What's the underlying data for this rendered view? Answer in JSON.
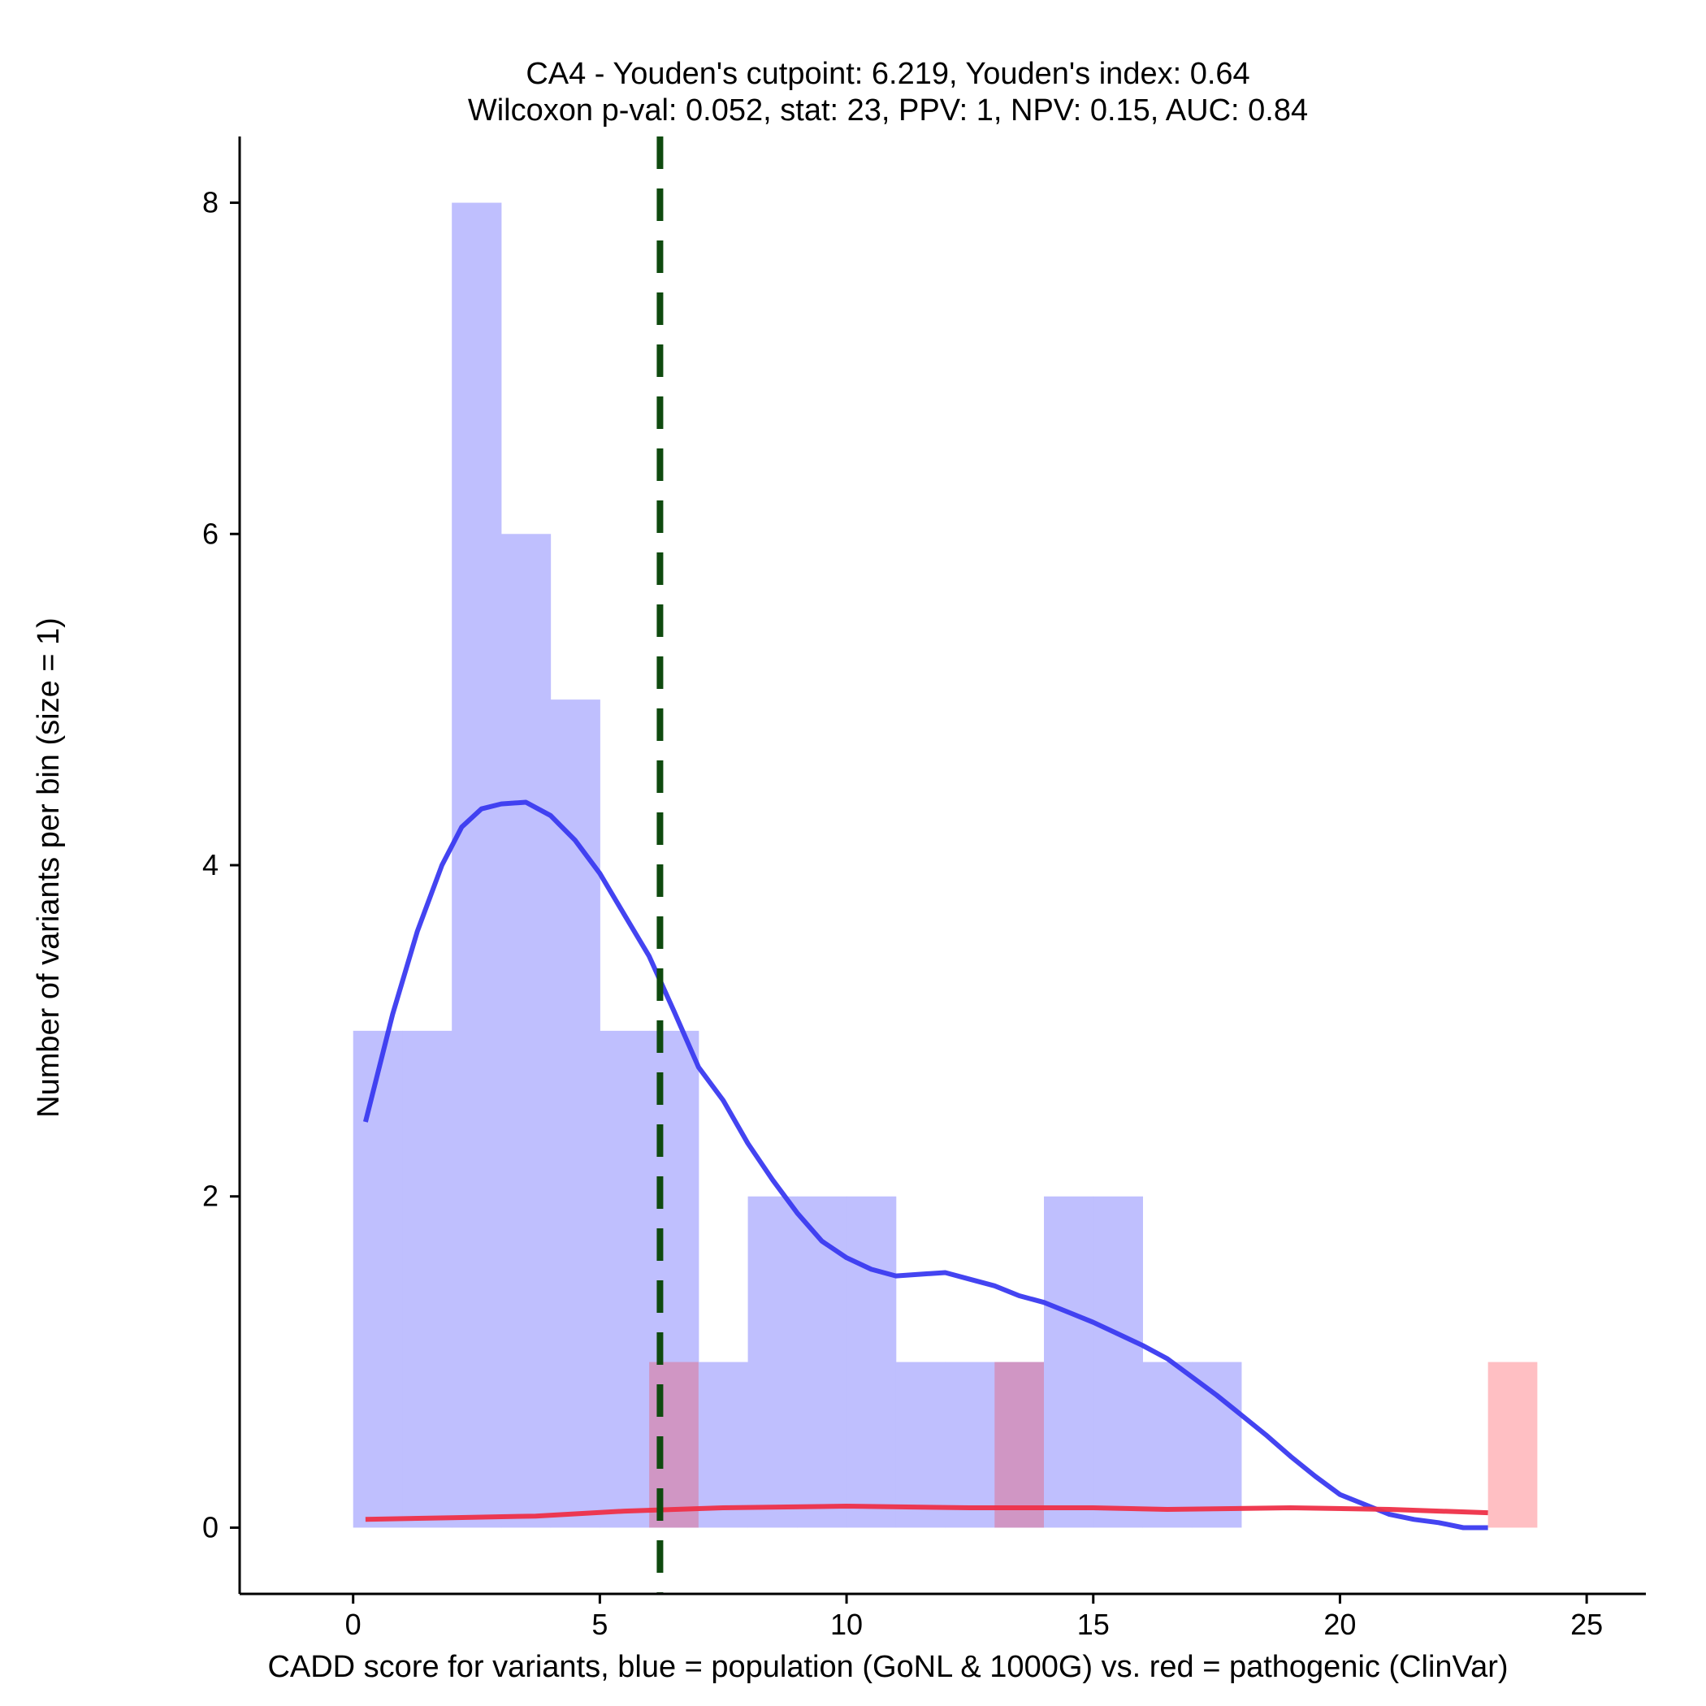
{
  "chart_data": {
    "type": "bar",
    "title": "CA4 - Youden's cutpoint: 6.219, Youden's index: 0.64",
    "subtitle": "Wilcoxon p-val: 0.052, stat: 23, PPV: 1, NPV: 0.15, AUC: 0.84",
    "xlabel": "CADD score for variants, blue = population (GoNL & 1000G) vs. red = pathogenic (ClinVar)",
    "ylabel": "Number of variants per bin (size = 1)",
    "xlim": [
      -2.3,
      26.2
    ],
    "ylim": [
      -0.4,
      8.4
    ],
    "x_ticks": [
      0,
      5,
      10,
      15,
      20,
      25
    ],
    "y_ticks": [
      0,
      2,
      4,
      6,
      8
    ],
    "grid": false,
    "cutpoint": 6.219,
    "colors": {
      "population_hist": "#bfbffe",
      "pathogenic_hist": "#ffbfc3",
      "overlap_hist": "#d096c4",
      "population_density": "#3a3af0",
      "pathogenic_density": "#ee3048",
      "cutpoint_line": "#0f4a0f"
    },
    "series": [
      {
        "name": "population",
        "bin_width": 1,
        "bins": [
          {
            "x": 0,
            "count": 3
          },
          {
            "x": 1,
            "count": 3
          },
          {
            "x": 2,
            "count": 8
          },
          {
            "x": 3,
            "count": 6
          },
          {
            "x": 4,
            "count": 5
          },
          {
            "x": 5,
            "count": 3
          },
          {
            "x": 6,
            "count": 3
          },
          {
            "x": 7,
            "count": 1
          },
          {
            "x": 8,
            "count": 2
          },
          {
            "x": 9,
            "count": 2
          },
          {
            "x": 10,
            "count": 2
          },
          {
            "x": 11,
            "count": 1
          },
          {
            "x": 12,
            "count": 1
          },
          {
            "x": 13,
            "count": 1
          },
          {
            "x": 14,
            "count": 2
          },
          {
            "x": 15,
            "count": 2
          },
          {
            "x": 16,
            "count": 1
          },
          {
            "x": 17,
            "count": 1
          }
        ],
        "density": [
          [
            0.25,
            2.45
          ],
          [
            0.8,
            3.1
          ],
          [
            1.3,
            3.6
          ],
          [
            1.8,
            4.0
          ],
          [
            2.2,
            4.23
          ],
          [
            2.6,
            4.34
          ],
          [
            3.0,
            4.37
          ],
          [
            3.5,
            4.38
          ],
          [
            4.0,
            4.3
          ],
          [
            4.5,
            4.15
          ],
          [
            5.0,
            3.95
          ],
          [
            5.5,
            3.7
          ],
          [
            6.0,
            3.45
          ],
          [
            6.5,
            3.12
          ],
          [
            7.0,
            2.78
          ],
          [
            7.5,
            2.58
          ],
          [
            8.0,
            2.32
          ],
          [
            8.5,
            2.1
          ],
          [
            9.0,
            1.9
          ],
          [
            9.5,
            1.73
          ],
          [
            10.0,
            1.63
          ],
          [
            10.5,
            1.56
          ],
          [
            11.0,
            1.52
          ],
          [
            11.5,
            1.53
          ],
          [
            12.0,
            1.54
          ],
          [
            12.5,
            1.5
          ],
          [
            13.0,
            1.46
          ],
          [
            13.5,
            1.4
          ],
          [
            14.0,
            1.36
          ],
          [
            14.5,
            1.3
          ],
          [
            15.0,
            1.24
          ],
          [
            15.5,
            1.17
          ],
          [
            16.0,
            1.1
          ],
          [
            16.5,
            1.02
          ],
          [
            17.0,
            0.91
          ],
          [
            17.5,
            0.8
          ],
          [
            18.0,
            0.68
          ],
          [
            18.5,
            0.56
          ],
          [
            19.0,
            0.43
          ],
          [
            19.5,
            0.31
          ],
          [
            20.0,
            0.2
          ],
          [
            20.5,
            0.14
          ],
          [
            21.0,
            0.08
          ],
          [
            21.5,
            0.05
          ],
          [
            22.0,
            0.03
          ],
          [
            22.5,
            0.0
          ],
          [
            23.0,
            0.0
          ]
        ]
      },
      {
        "name": "pathogenic",
        "bin_width": 1,
        "bins": [
          {
            "x": 6,
            "count": 1
          },
          {
            "x": 13,
            "count": 1
          },
          {
            "x": 23,
            "count": 1
          }
        ],
        "density": [
          [
            0.25,
            0.05
          ],
          [
            2,
            0.06
          ],
          [
            3.7,
            0.07
          ],
          [
            5.5,
            0.1
          ],
          [
            7.5,
            0.12
          ],
          [
            10.0,
            0.13
          ],
          [
            12.5,
            0.12
          ],
          [
            15.0,
            0.12
          ],
          [
            16.5,
            0.11
          ],
          [
            19.0,
            0.12
          ],
          [
            21.0,
            0.11
          ],
          [
            23.0,
            0.09
          ]
        ]
      }
    ]
  }
}
